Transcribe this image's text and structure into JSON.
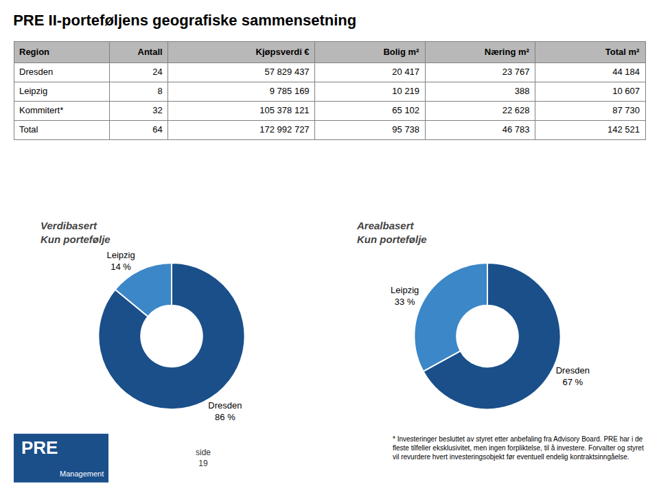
{
  "title": "PRE II-porteføljens geografiske sammensetning",
  "table": {
    "headers": [
      "Region",
      "Antall",
      "Kjøpsverdi €",
      "Bolig m²",
      "Næring m²",
      "Total m²"
    ],
    "rows": [
      [
        "Dresden",
        "24",
        "57 829 437",
        "20 417",
        "23 767",
        "44 184"
      ],
      [
        "Leipzig",
        "8",
        "9 785 169",
        "10 219",
        "388",
        "10 607"
      ],
      [
        "Kommitert*",
        "32",
        "105 378 121",
        "65 102",
        "22 628",
        "87 730"
      ],
      [
        "Total",
        "64",
        "172 992 727",
        "95 738",
        "46 783",
        "142 521"
      ]
    ],
    "header_color": "#b8b8b8"
  },
  "chart_data": [
    {
      "type": "pie",
      "title": "Verdibasert",
      "subtitle": "Kun portefølje",
      "categories": [
        "Dresden",
        "Leipzig"
      ],
      "values": [
        86,
        14
      ],
      "value_labels": [
        "86 %",
        "14 %"
      ],
      "colors": [
        "#1a4f8a",
        "#3b87c8"
      ],
      "data_labels": true
    },
    {
      "type": "pie",
      "title": "Arealbasert",
      "subtitle": "Kun portefølje",
      "categories": [
        "Dresden",
        "Leipzig"
      ],
      "values": [
        67,
        33
      ],
      "value_labels": [
        "67 %",
        "33 %"
      ],
      "colors": [
        "#1a4f8a",
        "#3b87c8"
      ],
      "data_labels": true
    }
  ],
  "footer": {
    "logo": "PRE",
    "logo_subtitle": "Management",
    "logo_color": "#1a4f8a",
    "page_label": "side",
    "page_number": "19",
    "footnote": "* Investeringer besluttet av styret etter anbefaling fra Advisory Board. PRE har i de\nfleste tilfeller eksklusivitet, men ingen forpliktelse, til å investere. Forvalter og styret\nvil revurdere hvert investeringsobjekt før eventuell endelig kontraktsinngåelse."
  }
}
